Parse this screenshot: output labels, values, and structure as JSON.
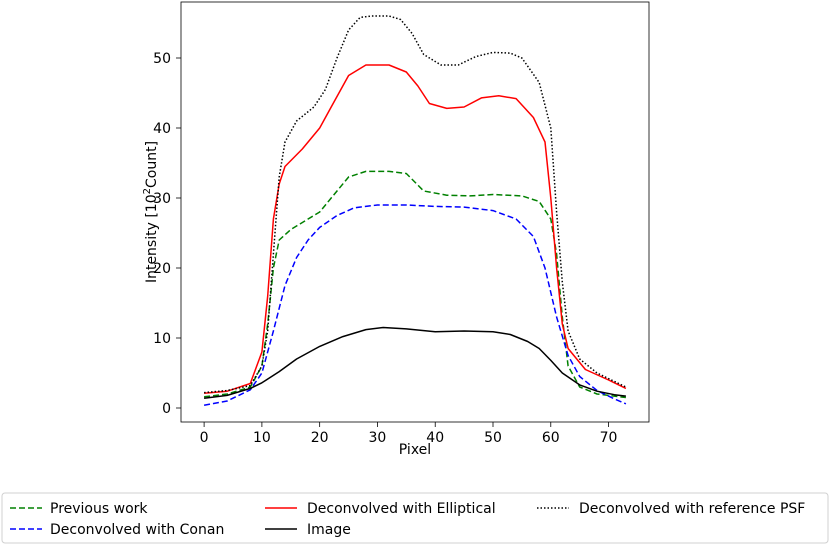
{
  "chart_data": {
    "type": "line",
    "xlabel": "Pixel",
    "ylabel_main": "Intensity [10",
    "ylabel_sup": "2",
    "ylabel_tail": "Count]",
    "xlim": [
      -4,
      77
    ],
    "ylim": [
      -2,
      58
    ],
    "xticks": [
      0,
      10,
      20,
      30,
      40,
      50,
      60,
      70
    ],
    "yticks": [
      0,
      10,
      20,
      30,
      40,
      50
    ],
    "grid": false,
    "legend_position": "bottom",
    "series": [
      {
        "name": "Previous work",
        "color": "#008000",
        "dash": "6 3",
        "points": [
          [
            0,
            1.6
          ],
          [
            4,
            2.0
          ],
          [
            8,
            3.0
          ],
          [
            10,
            6.0
          ],
          [
            11,
            12.0
          ],
          [
            12,
            20.0
          ],
          [
            13,
            24.0
          ],
          [
            15,
            25.5
          ],
          [
            18,
            27.0
          ],
          [
            20,
            28.0
          ],
          [
            22,
            30.0
          ],
          [
            25,
            33.0
          ],
          [
            28,
            33.8
          ],
          [
            32,
            33.8
          ],
          [
            35,
            33.5
          ],
          [
            38,
            31.0
          ],
          [
            42,
            30.4
          ],
          [
            46,
            30.3
          ],
          [
            50,
            30.5
          ],
          [
            55,
            30.3
          ],
          [
            58,
            29.5
          ],
          [
            60,
            27.0
          ],
          [
            61,
            22.0
          ],
          [
            62,
            13.0
          ],
          [
            63,
            6.0
          ],
          [
            65,
            3.0
          ],
          [
            68,
            2.0
          ],
          [
            73,
            1.5
          ]
        ]
      },
      {
        "name": "Deconvolved with Conan",
        "color": "#0000ff",
        "dash": "6 3",
        "points": [
          [
            0,
            0.4
          ],
          [
            4,
            1.0
          ],
          [
            8,
            2.6
          ],
          [
            10,
            5.0
          ],
          [
            12,
            11.0
          ],
          [
            14,
            17.5
          ],
          [
            16,
            21.5
          ],
          [
            18,
            24.0
          ],
          [
            20,
            25.8
          ],
          [
            23,
            27.5
          ],
          [
            26,
            28.6
          ],
          [
            30,
            29.0
          ],
          [
            35,
            29.0
          ],
          [
            40,
            28.8
          ],
          [
            45,
            28.7
          ],
          [
            50,
            28.2
          ],
          [
            54,
            27.0
          ],
          [
            57,
            24.5
          ],
          [
            59,
            20.0
          ],
          [
            61,
            13.0
          ],
          [
            63,
            7.5
          ],
          [
            65,
            4.5
          ],
          [
            68,
            2.5
          ],
          [
            71,
            1.3
          ],
          [
            73,
            0.6
          ]
        ]
      },
      {
        "name": "Deconvolved with Elliptical",
        "color": "#ff0000",
        "dash": "",
        "points": [
          [
            0,
            2.1
          ],
          [
            4,
            2.4
          ],
          [
            8,
            3.5
          ],
          [
            10,
            8.0
          ],
          [
            11,
            16.0
          ],
          [
            12,
            27.0
          ],
          [
            13,
            32.0
          ],
          [
            14,
            34.5
          ],
          [
            17,
            37.0
          ],
          [
            20,
            40.0
          ],
          [
            22,
            43.0
          ],
          [
            25,
            47.5
          ],
          [
            28,
            49.0
          ],
          [
            32,
            49.0
          ],
          [
            35,
            48.0
          ],
          [
            37,
            46.0
          ],
          [
            39,
            43.5
          ],
          [
            42,
            42.8
          ],
          [
            45,
            43.0
          ],
          [
            48,
            44.3
          ],
          [
            51,
            44.6
          ],
          [
            54,
            44.2
          ],
          [
            57,
            41.5
          ],
          [
            59,
            38.0
          ],
          [
            60,
            30.0
          ],
          [
            61,
            20.0
          ],
          [
            62,
            12.0
          ],
          [
            63,
            8.5
          ],
          [
            66,
            5.5
          ],
          [
            70,
            4.0
          ],
          [
            73,
            2.8
          ]
        ]
      },
      {
        "name": "Image",
        "color": "#000000",
        "dash": "",
        "points": [
          [
            0,
            1.4
          ],
          [
            4,
            1.8
          ],
          [
            8,
            2.8
          ],
          [
            10,
            3.6
          ],
          [
            13,
            5.2
          ],
          [
            16,
            7.0
          ],
          [
            20,
            8.8
          ],
          [
            24,
            10.2
          ],
          [
            28,
            11.2
          ],
          [
            31,
            11.5
          ],
          [
            35,
            11.3
          ],
          [
            40,
            10.9
          ],
          [
            45,
            11.0
          ],
          [
            50,
            10.9
          ],
          [
            53,
            10.5
          ],
          [
            56,
            9.5
          ],
          [
            58,
            8.5
          ],
          [
            60,
            6.8
          ],
          [
            62,
            5.0
          ],
          [
            65,
            3.3
          ],
          [
            68,
            2.4
          ],
          [
            71,
            1.9
          ],
          [
            73,
            1.7
          ]
        ]
      },
      {
        "name": "Deconvolved with reference PSF",
        "color": "#000000",
        "dash": "1.5 2",
        "points": [
          [
            0,
            2.2
          ],
          [
            4,
            2.5
          ],
          [
            8,
            3.2
          ],
          [
            10,
            6.0
          ],
          [
            11,
            11.0
          ],
          [
            12,
            22.0
          ],
          [
            13,
            33.0
          ],
          [
            14,
            38.0
          ],
          [
            16,
            41.0
          ],
          [
            19,
            43.0
          ],
          [
            21,
            45.5
          ],
          [
            23,
            50.0
          ],
          [
            25,
            54.0
          ],
          [
            27,
            55.8
          ],
          [
            29,
            56.0
          ],
          [
            32,
            56.0
          ],
          [
            34,
            55.5
          ],
          [
            36,
            53.5
          ],
          [
            38,
            50.5
          ],
          [
            41,
            49.0
          ],
          [
            44,
            49.0
          ],
          [
            47,
            50.2
          ],
          [
            50,
            50.8
          ],
          [
            53,
            50.7
          ],
          [
            55,
            50.0
          ],
          [
            58,
            46.5
          ],
          [
            60,
            40.0
          ],
          [
            61,
            28.0
          ],
          [
            62,
            18.0
          ],
          [
            63,
            11.0
          ],
          [
            65,
            7.0
          ],
          [
            68,
            5.0
          ],
          [
            73,
            3.0
          ]
        ]
      }
    ]
  }
}
